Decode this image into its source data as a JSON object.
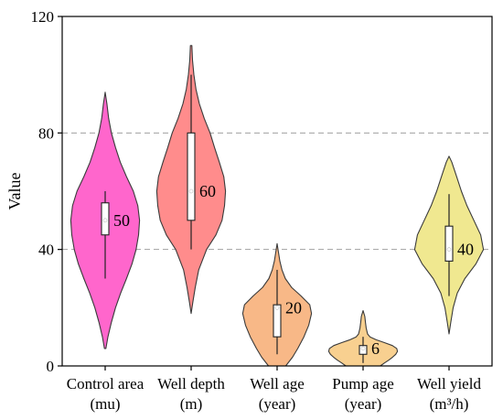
{
  "chart_data": {
    "type": "violin",
    "ylabel": "Value",
    "ylim": [
      0,
      120
    ],
    "yticks": [
      0,
      40,
      80,
      120
    ],
    "grid": "horizontal-dashed",
    "categories": [
      {
        "line1": "Control area",
        "line2": "(mu)",
        "color": "#ff66cc",
        "min": 6,
        "max": 94,
        "q1": 45,
        "median": 50,
        "q3": 56,
        "whisker_low": 30,
        "whisker_high": 60,
        "median_label": "50",
        "density": [
          [
            6,
            0.02
          ],
          [
            10,
            0.08
          ],
          [
            15,
            0.18
          ],
          [
            20,
            0.3
          ],
          [
            25,
            0.45
          ],
          [
            30,
            0.62
          ],
          [
            35,
            0.78
          ],
          [
            40,
            0.9
          ],
          [
            45,
            0.97
          ],
          [
            50,
            1.0
          ],
          [
            55,
            0.95
          ],
          [
            60,
            0.82
          ],
          [
            65,
            0.62
          ],
          [
            70,
            0.44
          ],
          [
            75,
            0.3
          ],
          [
            80,
            0.18
          ],
          [
            85,
            0.1
          ],
          [
            90,
            0.05
          ],
          [
            94,
            0.0
          ]
        ]
      },
      {
        "line1": "Well depth",
        "line2": "(m)",
        "color": "#ff8c8c",
        "min": 18,
        "max": 110,
        "q1": 50,
        "median": 60,
        "q3": 80,
        "whisker_low": 40,
        "whisker_high": 100,
        "median_label": "60",
        "density": [
          [
            18,
            0.0
          ],
          [
            22,
            0.05
          ],
          [
            27,
            0.12
          ],
          [
            33,
            0.22
          ],
          [
            40,
            0.45
          ],
          [
            45,
            0.72
          ],
          [
            50,
            0.9
          ],
          [
            55,
            0.97
          ],
          [
            60,
            1.0
          ],
          [
            65,
            0.95
          ],
          [
            70,
            0.82
          ],
          [
            75,
            0.68
          ],
          [
            80,
            0.55
          ],
          [
            85,
            0.38
          ],
          [
            90,
            0.24
          ],
          [
            95,
            0.14
          ],
          [
            100,
            0.08
          ],
          [
            105,
            0.04
          ],
          [
            110,
            0.02
          ]
        ]
      },
      {
        "line1": "Well age",
        "line2": "(year)",
        "color": "#f8b887",
        "min": 0,
        "max": 42,
        "q1": 10,
        "median": 20,
        "q3": 21,
        "whisker_low": 4,
        "whisker_high": 33,
        "median_label": "20",
        "density": [
          [
            0,
            0.25
          ],
          [
            3,
            0.45
          ],
          [
            6,
            0.6
          ],
          [
            10,
            0.78
          ],
          [
            14,
            0.92
          ],
          [
            18,
            1.0
          ],
          [
            21,
            0.95
          ],
          [
            24,
            0.7
          ],
          [
            27,
            0.42
          ],
          [
            30,
            0.24
          ],
          [
            33,
            0.14
          ],
          [
            36,
            0.08
          ],
          [
            39,
            0.04
          ],
          [
            42,
            0.0
          ]
        ]
      },
      {
        "line1": "Pump age",
        "line2": "(year)",
        "color": "#f8d090",
        "min": 0,
        "max": 19,
        "q1": 4,
        "median": 6,
        "q3": 7,
        "whisker_low": 1,
        "whisker_high": 10,
        "median_label": "6",
        "density": [
          [
            0,
            0.5
          ],
          [
            1,
            0.62
          ],
          [
            2,
            0.75
          ],
          [
            3,
            0.86
          ],
          [
            4,
            0.95
          ],
          [
            5,
            1.0
          ],
          [
            6,
            0.98
          ],
          [
            7,
            0.85
          ],
          [
            8,
            0.62
          ],
          [
            9,
            0.38
          ],
          [
            10,
            0.2
          ],
          [
            11,
            0.13
          ],
          [
            13,
            0.09
          ],
          [
            15,
            0.07
          ],
          [
            17,
            0.05
          ],
          [
            19,
            0.0
          ]
        ]
      },
      {
        "line1": "Well yield",
        "line2": "(m³/h)",
        "color": "#f0e890",
        "min": 11,
        "max": 72,
        "q1": 36,
        "median": 40,
        "q3": 48,
        "whisker_low": 24,
        "whisker_high": 59,
        "median_label": "40",
        "density": [
          [
            11,
            0.0
          ],
          [
            15,
            0.05
          ],
          [
            20,
            0.12
          ],
          [
            25,
            0.24
          ],
          [
            30,
            0.46
          ],
          [
            35,
            0.78
          ],
          [
            40,
            1.0
          ],
          [
            45,
            0.92
          ],
          [
            50,
            0.72
          ],
          [
            55,
            0.52
          ],
          [
            60,
            0.36
          ],
          [
            65,
            0.22
          ],
          [
            70,
            0.08
          ],
          [
            72,
            0.0
          ]
        ]
      }
    ]
  }
}
